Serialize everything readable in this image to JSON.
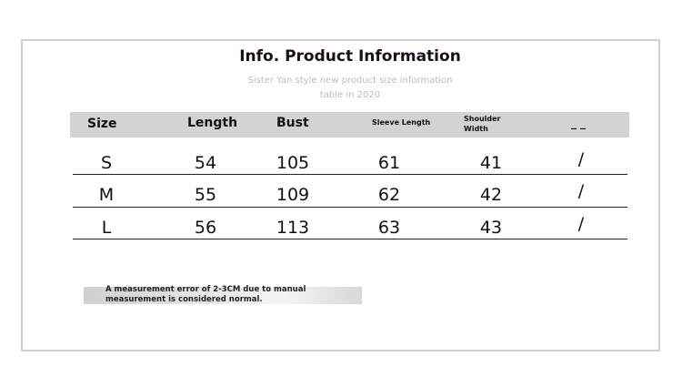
{
  "title": "Info. Product Information",
  "subtitle_line1": "Sister Yan style new product size information",
  "subtitle_line2": "table  in  2020",
  "headers": [
    "Size",
    "Length",
    "Bust",
    "Sleeve Length",
    "Shoulder Width",
    "_ _"
  ],
  "rows": [
    [
      "S",
      "54",
      "105",
      "61",
      "41",
      "/"
    ],
    [
      "M",
      "55",
      "109",
      "62",
      "42",
      "/"
    ],
    [
      "L",
      "56",
      "113",
      "63",
      "43",
      "/"
    ]
  ],
  "note": "A measurement error of 2-3CM due to manual measurement is considered normal."
}
